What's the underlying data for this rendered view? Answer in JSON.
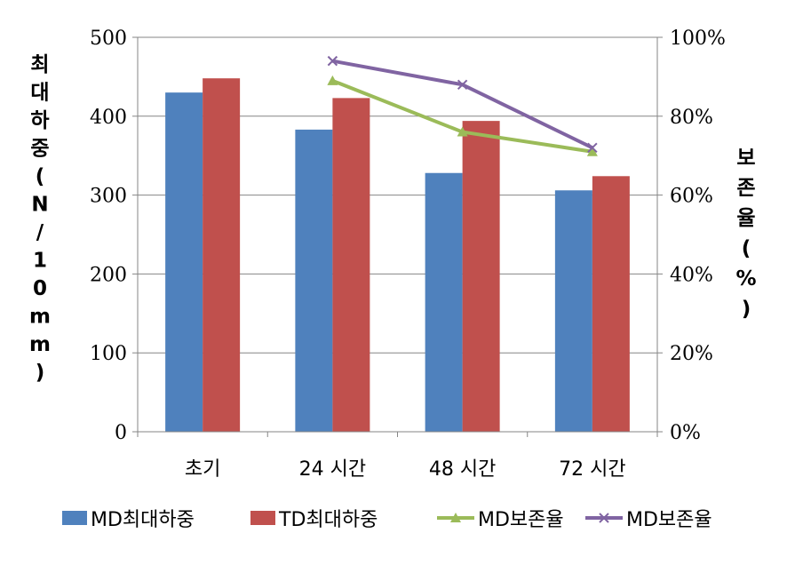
{
  "chart_data": {
    "type": "bar",
    "categories": [
      "초기",
      "24 시간",
      "48 시간",
      "72 시간"
    ],
    "y_left": {
      "label": "최대하중(N/10mm)",
      "min": 0,
      "max": 500,
      "ticks": [
        "0",
        "100",
        "200",
        "300",
        "400",
        "500"
      ]
    },
    "y_right": {
      "label": "보존율(%)",
      "min": 0,
      "max": 1,
      "ticks": [
        "0%",
        "20%",
        "40%",
        "60%",
        "80%",
        "100%"
      ]
    },
    "grid": "horizontal",
    "legend_position": "bottom",
    "series": [
      {
        "name": "MD최대하중",
        "kind": "bar",
        "axis": "left",
        "color": "#4F81BD",
        "values": [
          430,
          383,
          328,
          306
        ]
      },
      {
        "name": "TD최대하중",
        "kind": "bar",
        "axis": "left",
        "color": "#C0504D",
        "values": [
          448,
          423,
          394,
          324
        ]
      },
      {
        "name": "MD보존율",
        "kind": "line",
        "marker": "triangle",
        "axis": "right",
        "color": "#9BBB59",
        "values": [
          null,
          0.89,
          0.76,
          0.71
        ]
      },
      {
        "name": "MD보존율",
        "kind": "line",
        "marker": "x",
        "axis": "right",
        "color": "#8064A2",
        "values": [
          null,
          0.94,
          0.88,
          0.72
        ]
      }
    ]
  }
}
